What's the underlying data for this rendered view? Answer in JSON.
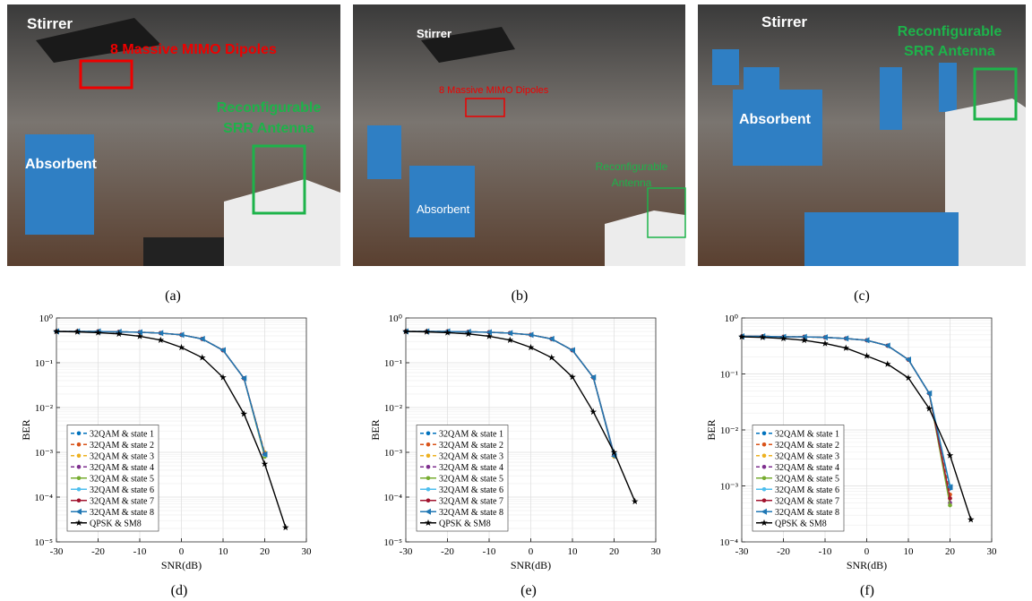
{
  "photos": [
    {
      "labels": [
        "Stirrer",
        "8 Massive MIMO Dipoles",
        "Reconfigurable",
        "SRR Antenna",
        "Absorbent"
      ]
    },
    {
      "labels": [
        "Stirrer",
        "8 Massive MIMO Dipoles",
        "Reconfigurable",
        "Antenna",
        "Absorbent"
      ]
    },
    {
      "labels": [
        "Stirrer",
        "Reconfigurable",
        "SRR Antenna",
        "Absorbent"
      ]
    }
  ],
  "captions": [
    "(a)",
    "(b)",
    "(c)",
    "(d)",
    "(e)",
    "(f)"
  ],
  "chart_data": [
    {
      "type": "line",
      "xlabel": "SNR(dB)",
      "ylabel": "BER",
      "log_y": true,
      "grid": true,
      "legend": "lower left",
      "x": [
        -30,
        -25,
        -20,
        -15,
        -10,
        -5,
        0,
        5,
        10,
        15,
        20,
        25
      ],
      "xlim": [
        -30,
        30
      ],
      "xticks": [
        -30,
        -20,
        -10,
        0,
        10,
        20,
        30
      ],
      "ylim": [
        1e-05,
        1
      ],
      "yticks": [
        {
          "value": 1e-05,
          "label": "10⁻⁵"
        },
        {
          "value": 0.0001,
          "label": "10⁻⁴"
        },
        {
          "value": 0.001,
          "label": "10⁻³"
        },
        {
          "value": 0.01,
          "label": "10⁻²"
        },
        {
          "value": 0.1,
          "label": "10⁻¹"
        },
        {
          "value": 1,
          "label": "10⁰"
        }
      ],
      "series": [
        {
          "name": "32QAM & state 1",
          "color": "#0072bd",
          "line": "dashed",
          "marker": "o",
          "values": [
            0.5,
            0.5,
            0.5,
            0.49,
            0.48,
            0.46,
            0.42,
            0.34,
            0.19,
            0.045,
            0.0009,
            null
          ]
        },
        {
          "name": "32QAM & state 2",
          "color": "#d95319",
          "line": "dashed",
          "marker": "o",
          "values": [
            0.5,
            0.5,
            0.5,
            0.49,
            0.48,
            0.46,
            0.42,
            0.34,
            0.19,
            0.045,
            0.00095,
            null
          ]
        },
        {
          "name": "32QAM & state 3",
          "color": "#edb120",
          "line": "dashed",
          "marker": "o",
          "values": [
            0.5,
            0.5,
            0.5,
            0.49,
            0.48,
            0.46,
            0.42,
            0.34,
            0.19,
            0.045,
            0.001,
            null
          ]
        },
        {
          "name": "32QAM & state 4",
          "color": "#7e2f8e",
          "line": "dashed",
          "marker": "o",
          "values": [
            0.5,
            0.5,
            0.5,
            0.49,
            0.48,
            0.46,
            0.42,
            0.34,
            0.19,
            0.045,
            0.00085,
            null
          ]
        },
        {
          "name": "32QAM & state 5",
          "color": "#77ac30",
          "line": "solid",
          "marker": "o",
          "values": [
            0.5,
            0.5,
            0.5,
            0.49,
            0.48,
            0.46,
            0.42,
            0.34,
            0.19,
            0.045,
            0.0008,
            null
          ]
        },
        {
          "name": "32QAM & state 6",
          "color": "#4dbeee",
          "line": "solid",
          "marker": "o",
          "values": [
            0.5,
            0.5,
            0.5,
            0.49,
            0.48,
            0.46,
            0.42,
            0.34,
            0.19,
            0.045,
            0.00088,
            null
          ]
        },
        {
          "name": "32QAM & state 7",
          "color": "#a2142f",
          "line": "solid",
          "marker": "o",
          "values": [
            0.5,
            0.5,
            0.5,
            0.49,
            0.48,
            0.46,
            0.42,
            0.34,
            0.19,
            0.045,
            0.00092,
            null
          ]
        },
        {
          "name": "32QAM & state 8",
          "color": "#1f77b4",
          "line": "solid",
          "marker": "<",
          "values": [
            0.5,
            0.5,
            0.5,
            0.49,
            0.48,
            0.46,
            0.42,
            0.34,
            0.19,
            0.045,
            0.0009,
            null
          ]
        },
        {
          "name": "QPSK & SM8",
          "color": "#000000",
          "line": "solid",
          "marker": "*",
          "values": [
            0.5,
            0.49,
            0.47,
            0.44,
            0.39,
            0.32,
            0.22,
            0.13,
            0.047,
            0.0072,
            0.00055,
            2.1e-05
          ]
        }
      ]
    },
    {
      "type": "line",
      "xlabel": "SNR(dB)",
      "ylabel": "BER",
      "log_y": true,
      "grid": true,
      "legend": "lower left",
      "x": [
        -30,
        -25,
        -20,
        -15,
        -10,
        -5,
        0,
        5,
        10,
        15,
        20,
        25
      ],
      "xlim": [
        -30,
        30
      ],
      "xticks": [
        -30,
        -20,
        -10,
        0,
        10,
        20,
        30
      ],
      "ylim": [
        1e-05,
        1
      ],
      "yticks": [
        {
          "value": 1e-05,
          "label": "10⁻⁵"
        },
        {
          "value": 0.0001,
          "label": "10⁻⁴"
        },
        {
          "value": 0.001,
          "label": "10⁻³"
        },
        {
          "value": 0.01,
          "label": "10⁻²"
        },
        {
          "value": 0.1,
          "label": "10⁻¹"
        },
        {
          "value": 1,
          "label": "10⁰"
        }
      ],
      "series": [
        {
          "name": "32QAM & state 1",
          "color": "#0072bd",
          "line": "dashed",
          "marker": "o",
          "values": [
            0.5,
            0.5,
            0.5,
            0.49,
            0.48,
            0.46,
            0.42,
            0.34,
            0.19,
            0.047,
            0.0009,
            null
          ]
        },
        {
          "name": "32QAM & state 2",
          "color": "#d95319",
          "line": "dashed",
          "marker": "o",
          "values": [
            0.5,
            0.5,
            0.5,
            0.49,
            0.48,
            0.46,
            0.42,
            0.34,
            0.19,
            0.047,
            0.00085,
            null
          ]
        },
        {
          "name": "32QAM & state 3",
          "color": "#edb120",
          "line": "dashed",
          "marker": "o",
          "values": [
            0.5,
            0.5,
            0.5,
            0.49,
            0.48,
            0.46,
            0.42,
            0.34,
            0.19,
            0.047,
            0.0008,
            null
          ]
        },
        {
          "name": "32QAM & state 4",
          "color": "#7e2f8e",
          "line": "dashed",
          "marker": "o",
          "values": [
            0.5,
            0.5,
            0.5,
            0.49,
            0.48,
            0.46,
            0.42,
            0.34,
            0.19,
            0.047,
            0.00088,
            null
          ]
        },
        {
          "name": "32QAM & state 5",
          "color": "#77ac30",
          "line": "solid",
          "marker": "o",
          "values": [
            0.5,
            0.5,
            0.5,
            0.49,
            0.48,
            0.46,
            0.42,
            0.34,
            0.19,
            0.047,
            0.0009,
            null
          ]
        },
        {
          "name": "32QAM & state 6",
          "color": "#4dbeee",
          "line": "solid",
          "marker": "o",
          "values": [
            0.5,
            0.5,
            0.5,
            0.49,
            0.48,
            0.46,
            0.42,
            0.34,
            0.19,
            0.047,
            0.00095,
            null
          ]
        },
        {
          "name": "32QAM & state 7",
          "color": "#a2142f",
          "line": "solid",
          "marker": "o",
          "values": [
            0.5,
            0.5,
            0.5,
            0.49,
            0.48,
            0.46,
            0.42,
            0.34,
            0.19,
            0.047,
            0.00087,
            null
          ]
        },
        {
          "name": "32QAM & state 8",
          "color": "#1f77b4",
          "line": "solid",
          "marker": "<",
          "values": [
            0.5,
            0.5,
            0.5,
            0.49,
            0.48,
            0.46,
            0.42,
            0.34,
            0.19,
            0.047,
            0.00082,
            null
          ]
        },
        {
          "name": "QPSK & SM8",
          "color": "#000000",
          "line": "solid",
          "marker": "*",
          "values": [
            0.5,
            0.49,
            0.47,
            0.44,
            0.39,
            0.32,
            0.22,
            0.13,
            0.048,
            0.008,
            0.001,
            8e-05
          ]
        }
      ]
    },
    {
      "type": "line",
      "xlabel": "SNR(dB)",
      "ylabel": "BER",
      "log_y": true,
      "grid": true,
      "legend": "lower left",
      "x": [
        -30,
        -25,
        -20,
        -15,
        -10,
        -5,
        0,
        5,
        10,
        15,
        20,
        25
      ],
      "xlim": [
        -30,
        30
      ],
      "xticks": [
        -30,
        -20,
        -10,
        0,
        10,
        20,
        30
      ],
      "ylim": [
        0.0001,
        1
      ],
      "yticks": [
        {
          "value": 0.0001,
          "label": "10⁻⁴"
        },
        {
          "value": 0.001,
          "label": "10⁻³"
        },
        {
          "value": 0.01,
          "label": "10⁻²"
        },
        {
          "value": 0.1,
          "label": "10⁻¹"
        },
        {
          "value": 1,
          "label": "10⁰"
        }
      ],
      "series": [
        {
          "name": "32QAM & state 1",
          "color": "#0072bd",
          "line": "dashed",
          "marker": "o",
          "values": [
            0.47,
            0.47,
            0.46,
            0.46,
            0.45,
            0.43,
            0.4,
            0.32,
            0.18,
            0.045,
            0.0009,
            null
          ]
        },
        {
          "name": "32QAM & state 2",
          "color": "#d95319",
          "line": "dashed",
          "marker": "o",
          "values": [
            0.47,
            0.47,
            0.46,
            0.46,
            0.45,
            0.43,
            0.4,
            0.32,
            0.18,
            0.045,
            0.0007,
            null
          ]
        },
        {
          "name": "32QAM & state 3",
          "color": "#edb120",
          "line": "dashed",
          "marker": "o",
          "values": [
            0.47,
            0.47,
            0.46,
            0.46,
            0.45,
            0.43,
            0.4,
            0.32,
            0.18,
            0.045,
            0.0006,
            null
          ]
        },
        {
          "name": "32QAM & state 4",
          "color": "#7e2f8e",
          "line": "dashed",
          "marker": "o",
          "values": [
            0.47,
            0.47,
            0.46,
            0.46,
            0.45,
            0.43,
            0.4,
            0.32,
            0.18,
            0.045,
            0.0005,
            null
          ]
        },
        {
          "name": "32QAM & state 5",
          "color": "#77ac30",
          "line": "solid",
          "marker": "o",
          "values": [
            0.47,
            0.47,
            0.46,
            0.46,
            0.45,
            0.43,
            0.4,
            0.32,
            0.18,
            0.045,
            0.00045,
            null
          ]
        },
        {
          "name": "32QAM & state 6",
          "color": "#4dbeee",
          "line": "solid",
          "marker": "o",
          "values": [
            0.47,
            0.47,
            0.46,
            0.46,
            0.45,
            0.43,
            0.4,
            0.32,
            0.18,
            0.045,
            0.001,
            null
          ]
        },
        {
          "name": "32QAM & state 7",
          "color": "#a2142f",
          "line": "solid",
          "marker": "o",
          "values": [
            0.47,
            0.47,
            0.46,
            0.46,
            0.45,
            0.43,
            0.4,
            0.32,
            0.18,
            0.045,
            0.0006,
            null
          ]
        },
        {
          "name": "32QAM & state 8",
          "color": "#1f77b4",
          "line": "solid",
          "marker": "<",
          "values": [
            0.47,
            0.47,
            0.46,
            0.46,
            0.45,
            0.43,
            0.4,
            0.32,
            0.18,
            0.045,
            0.00095,
            null
          ]
        },
        {
          "name": "QPSK & SM8",
          "color": "#000000",
          "line": "solid",
          "marker": "*",
          "values": [
            0.46,
            0.45,
            0.43,
            0.4,
            0.35,
            0.29,
            0.21,
            0.15,
            0.085,
            0.024,
            0.0035,
            0.00025
          ]
        }
      ]
    }
  ]
}
